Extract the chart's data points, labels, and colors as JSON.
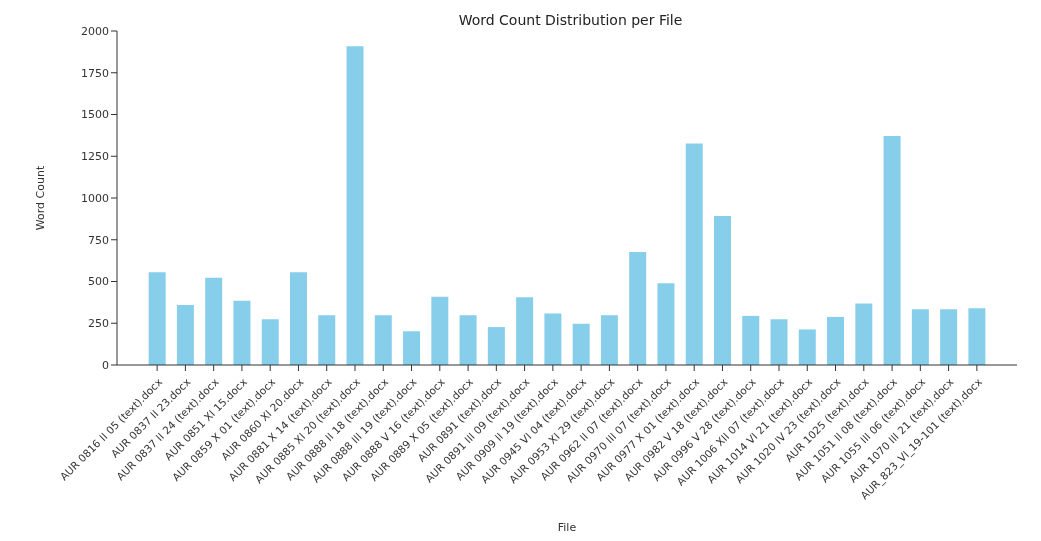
{
  "chart_data": {
    "type": "bar",
    "title": "Word Count Distribution per File",
    "xlabel": "File",
    "ylabel": "Word Count",
    "categories": [
      "AUR 0816 II 05 (text).docx",
      "AUR 0837 II 23.docx",
      "AUR 0837 II 24 (text).docx",
      "AUR 0851 XI 15.docx",
      "AUR 0859 X 01 (text).docx",
      "AUR 0860 XI 20.docx",
      "AUR 0881 X 14 (text).docx",
      "AUR 0885 XI 20 (text).docx",
      "AUR 0888 II 18 (text).docx",
      "AUR 0888 III 19 (text).docx",
      "AUR 0888 V 16 (text).docx",
      "AUR 0889 X 05 (text).docx",
      "AUR 0891 (text).docx",
      "AUR 0891 III 09 (text).docx",
      "AUR 0909 II 19 (text).docx",
      "AUR 0945 VI 04 (text).docx",
      "AUR 0953 XI 29 (text).docx",
      "AUR 0962 II 07 (text).docx",
      "AUR 0970 III 07 (text).docx",
      "AUR 0977 X 01 (text).docx",
      "AUR 0982 V 18 (text).docx",
      "AUR 0996 V 28 (text).docx",
      "AUR 1006 XII 07 (text).docx",
      "AUR 1014 VI 21 (text).docx",
      "AUR 1020 IV 23 (text).docx",
      "AUR 1025 (text).docx",
      "AUR 1051 II 08 (text).docx",
      "AUR 1055 III 06 (text).docx",
      "AUR 1070 III 21 (text).docx",
      "AUR_823_VI_19-101 (text).docx"
    ],
    "values": [
      555,
      360,
      523,
      385,
      274,
      555,
      298,
      1909,
      298,
      202,
      409,
      298,
      227,
      405,
      308,
      247,
      298,
      677,
      490,
      1327,
      892,
      294,
      274,
      213,
      288,
      369,
      1372,
      334,
      334,
      340
    ],
    "color": "#87ceeb",
    "ylim": [
      0,
      2000
    ],
    "yticks": [
      0,
      250,
      500,
      750,
      1000,
      1250,
      1500,
      1750,
      2000
    ],
    "grid": false,
    "legend": false
  }
}
